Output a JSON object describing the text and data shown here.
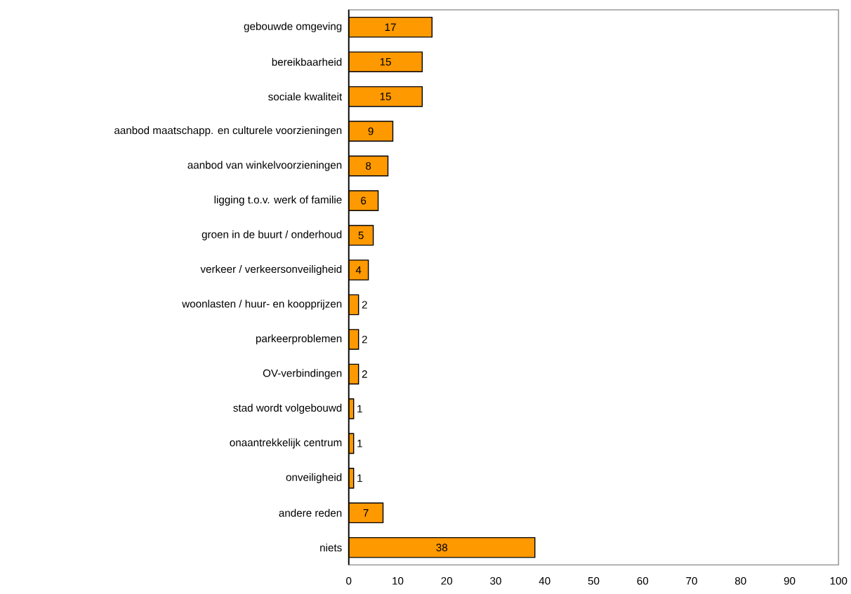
{
  "chart_data": {
    "type": "bar",
    "orientation": "horizontal",
    "categories": [
      "gebouwde omgeving",
      "bereikbaarheid",
      "sociale kwaliteit",
      "aanbod maatschapp. en culturele voorzieningen",
      "aanbod van winkelvoorzieningen",
      "ligging t.o.v. werk of familie",
      "groen in de buurt / onderhoud",
      "verkeer / verkeersonveiligheid",
      "woonlasten / huur- en koopprijzen",
      "parkeerproblemen",
      "OV-verbindingen",
      "stad wordt volgebouwd",
      "onaantrekkelijk centrum",
      "onveiligheid",
      "andere reden",
      "niets"
    ],
    "values": [
      17,
      15,
      15,
      9,
      8,
      6,
      5,
      4,
      2,
      2,
      2,
      1,
      1,
      1,
      7,
      38
    ],
    "color": "#ff9900",
    "data_labels": true,
    "grid": false,
    "xlim": [
      0,
      100
    ],
    "xticks": [
      0,
      10,
      20,
      30,
      40,
      50,
      60,
      70,
      80,
      90,
      100
    ]
  }
}
